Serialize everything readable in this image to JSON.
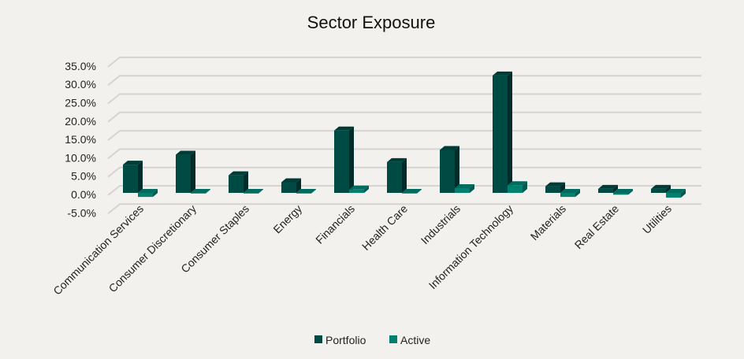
{
  "chart_data": {
    "type": "bar",
    "title": "Sector Exposure",
    "xlabel": "",
    "ylabel": "",
    "ylim": [
      -5,
      35
    ],
    "yticks": [
      "-5.0%",
      "0.0%",
      "5.0%",
      "10.0%",
      "15.0%",
      "20.0%",
      "25.0%",
      "30.0%",
      "35.0%"
    ],
    "grid": true,
    "legend": "bottom",
    "three_d": true,
    "categories": [
      "Communication Services",
      "Consumer Discretionary",
      "Consumer Staples",
      "Energy",
      "Financials",
      "Health Care",
      "Industrials",
      "Information Technology",
      "Materials",
      "Real Estate",
      "Utilities"
    ],
    "series": [
      {
        "name": "Portfolio",
        "color": "#004A44",
        "values": [
          7.7,
          10.4,
          4.8,
          2.9,
          17.0,
          8.4,
          11.7,
          32.0,
          1.8,
          1.1,
          1.1
        ]
      },
      {
        "name": "Active",
        "color": "#00806F",
        "values": [
          -1.1,
          -0.1,
          -0.1,
          -0.1,
          0.9,
          -0.1,
          1.3,
          2.1,
          -1.1,
          -0.5,
          -1.3
        ]
      }
    ]
  }
}
